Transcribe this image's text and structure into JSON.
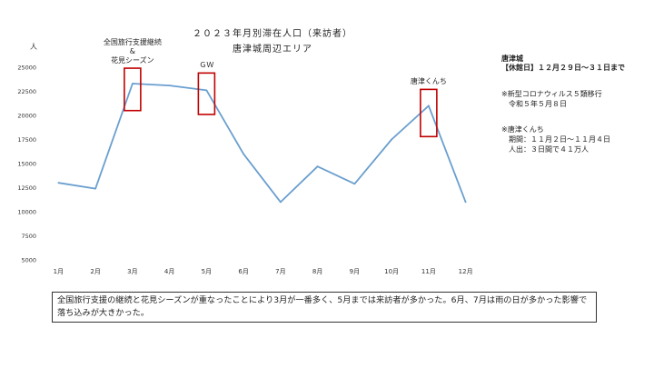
{
  "chart_data": {
    "type": "line",
    "title": "２０２３年月別滞在人口（来訪者）",
    "subtitle": "唐津城周辺エリア",
    "ylabel": "人",
    "categories": [
      "1月",
      "2月",
      "3月",
      "4月",
      "5月",
      "6月",
      "7月",
      "8月",
      "9月",
      "10月",
      "11月",
      "12月"
    ],
    "series": [
      {
        "values": [
          13000,
          12400,
          23300,
          23100,
          22600,
          16000,
          11000,
          14700,
          12900,
          17500,
          21000,
          11000
        ],
        "color": "#6a9fcf"
      }
    ],
    "ylim": [
      5000,
      25000
    ],
    "yticks": [
      5000,
      7500,
      10000,
      12500,
      15000,
      17500,
      20000,
      22500,
      25000
    ],
    "grid": false,
    "highlights": [
      {
        "category": "3月",
        "label": "全国旅行支援継続\n&\n花見シーズン",
        "range": [
          20500,
          24900
        ]
      },
      {
        "category": "5月",
        "label": "ＧＷ",
        "range": [
          20100,
          24400
        ]
      },
      {
        "category": "11月",
        "label": "唐津くんち",
        "range": [
          17800,
          22700
        ]
      }
    ],
    "highlight_color": "#c00000"
  },
  "side_notes": {
    "castle_title": "唐津城",
    "closed_days": "【休館日】１２月２９日～３１日まで",
    "covid_note": "※新型コロナウィルス５類移行\n　令和５年５月８日",
    "kunchi_note": "※唐津くんち\n　期間：１１月２日～１１月４日\n　人出：３日間で４１万人"
  },
  "caption": "全国旅行支援の継続と花見シーズンが重なったことにより3月が一番多く、5月までは来訪者が多かった。6月、7月は雨の日が多かった影響で落ち込みが大きかった。"
}
